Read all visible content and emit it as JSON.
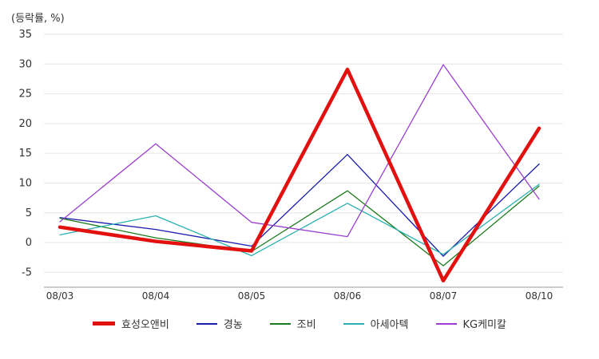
{
  "chart_data": {
    "type": "line",
    "title": "",
    "ylabel": "(등락률, %)",
    "xlabel": "",
    "categories": [
      "08/03",
      "08/04",
      "08/05",
      "08/06",
      "08/07",
      "08/10"
    ],
    "ylim": [
      -7.5,
      35
    ],
    "yticks": [
      35,
      30,
      25,
      20,
      15,
      10,
      5,
      0,
      -5
    ],
    "grid": true,
    "legend_position": "bottom",
    "series": [
      {
        "name": "효성오앤비",
        "color": "#e31010",
        "bold": true,
        "values": [
          2.6,
          0.2,
          -1.4,
          29.1,
          -6.4,
          19.2
        ]
      },
      {
        "name": "경농",
        "color": "#1a1aad",
        "bold": false,
        "values": [
          4.2,
          2.2,
          -0.6,
          14.8,
          -2.3,
          13.2
        ]
      },
      {
        "name": "조비",
        "color": "#1b7a1b",
        "bold": false,
        "values": [
          4.1,
          0.8,
          -1.5,
          8.7,
          -3.9,
          9.5
        ]
      },
      {
        "name": "아세아텍",
        "color": "#2ab0b0",
        "bold": false,
        "values": [
          1.3,
          4.5,
          -2.2,
          6.6,
          -2.0,
          9.8
        ]
      },
      {
        "name": "KG케미칼",
        "color": "#9b3fd0",
        "bold": false,
        "values": [
          3.5,
          16.6,
          3.4,
          1.0,
          29.9,
          7.3
        ]
      }
    ]
  }
}
